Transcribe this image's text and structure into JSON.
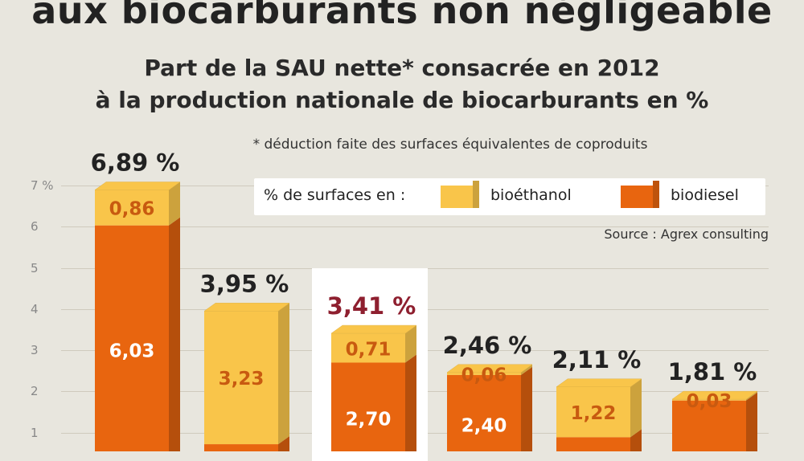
{
  "header": {
    "title": "aux biocarburants non négligeable",
    "subtitle_line1": "Part de la SAU nette* consacrée en 2012",
    "subtitle_line2": "à la production nationale de biocarburants en %",
    "footnote": "* déduction faite des surfaces équivalentes de coproduits",
    "source": "Source : Agrex consulting"
  },
  "legend": {
    "label": "% de surfaces en :",
    "bioethanol": "bioéthanol",
    "biodiesel": "biodiesel"
  },
  "colors": {
    "bioethanol": "#f9c54a",
    "biodiesel": "#e8650f",
    "highlight_total": "#8e1f2f",
    "total": "#222222",
    "label_on_ethanol": "#c85a10",
    "label_on_diesel": "#ffffff"
  },
  "chart_data": {
    "type": "bar",
    "stacked": true,
    "y_ticks": [
      "1",
      "2",
      "3",
      "4",
      "5",
      "6",
      "7 %"
    ],
    "ylim": [
      0,
      7
    ],
    "grid": true,
    "legend_position": "top-right",
    "totals": [
      "6,89 %",
      "3,95 %",
      "3,41 %",
      "2,46 %",
      "2,11 %",
      "1,81 %"
    ],
    "series": [
      {
        "name": "biodiesel",
        "values": [
          6.03,
          0.72,
          2.7,
          2.4,
          0.89,
          1.78
        ],
        "labels": [
          "6,03",
          "",
          "2,70",
          "2,40",
          "",
          ""
        ]
      },
      {
        "name": "bioéthanol",
        "values": [
          0.86,
          3.23,
          0.71,
          0.06,
          1.22,
          0.03
        ],
        "labels": [
          "0,86",
          "3,23",
          "0,71",
          "0,06",
          "1,22",
          "0,03"
        ]
      }
    ],
    "highlighted_index": 2
  }
}
